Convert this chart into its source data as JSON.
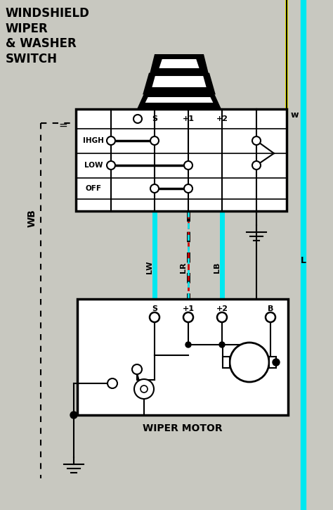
{
  "bg_color": "#c8c8c0",
  "title_text": "WINDSHIELD\nWIPER\n& WASHER\nSWITCH",
  "wiper_motor_label": "WIPER MOTOR",
  "switch_row_labels": [
    "IHGH",
    "LOW",
    "OFF"
  ],
  "top_col_labels": [
    "S",
    "+1",
    "+2"
  ],
  "motor_col_labels": [
    "S",
    "+1",
    "+2",
    "B"
  ],
  "cyan": "#00e8f0",
  "yellow": "#e8e800",
  "red": "#cc0000",
  "lw_label": "LW",
  "lr_label": "LR",
  "lb_label": "LB",
  "l_label": "L",
  "wb_label": "WB",
  "w_label": "w"
}
